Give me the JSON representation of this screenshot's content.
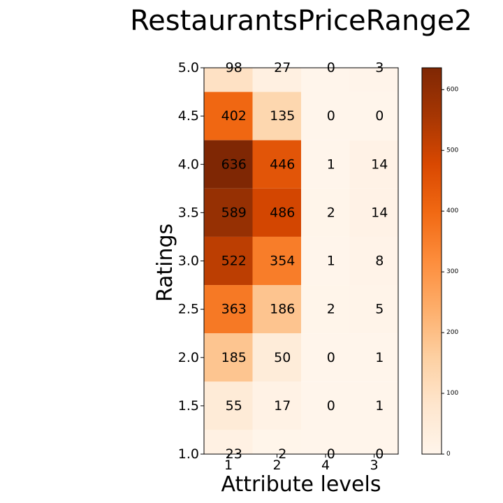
{
  "chart_data": {
    "type": "heatmap",
    "title": "RestaurantsPriceRange2",
    "xlabel": "Attribute levels",
    "ylabel": "Ratings",
    "x_categories": [
      "1",
      "2",
      "4",
      "3"
    ],
    "y_categories": [
      "5.0",
      "4.5",
      "4.0",
      "3.5",
      "3.0",
      "2.5",
      "2.0",
      "1.5",
      "1.0"
    ],
    "values": [
      [
        98,
        27,
        0,
        3
      ],
      [
        402,
        135,
        0,
        0
      ],
      [
        636,
        446,
        1,
        14
      ],
      [
        589,
        486,
        2,
        14
      ],
      [
        522,
        354,
        1,
        8
      ],
      [
        363,
        186,
        2,
        5
      ],
      [
        185,
        50,
        0,
        1
      ],
      [
        55,
        17,
        0,
        1
      ],
      [
        23,
        2,
        0,
        0
      ]
    ],
    "colormap": "Oranges",
    "colorbar": {
      "range": [
        0,
        636
      ],
      "ticks": [
        "0",
        "100",
        "200",
        "300",
        "400",
        "500",
        "600"
      ]
    },
    "grid": false
  }
}
